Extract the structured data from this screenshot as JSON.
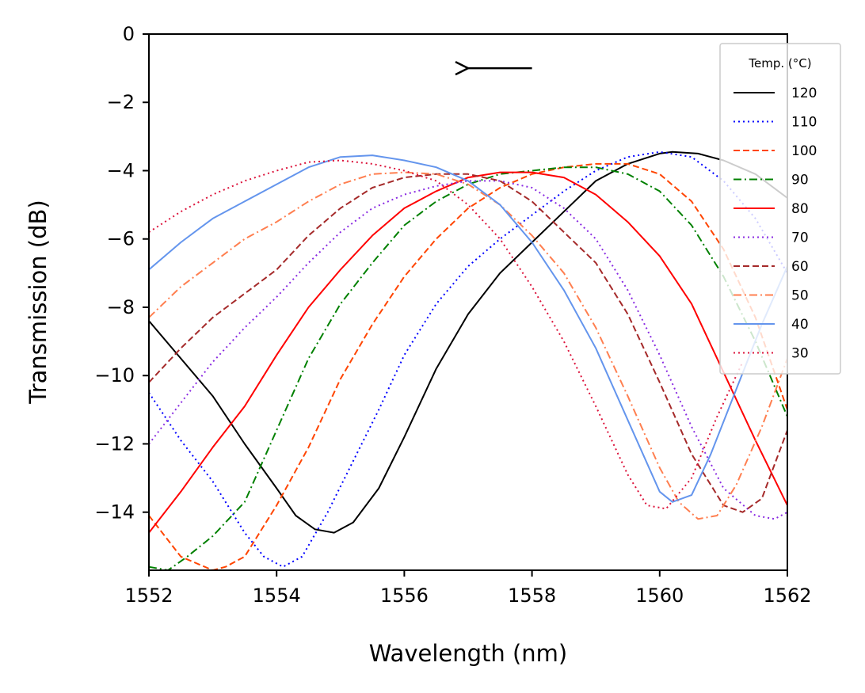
{
  "chart_data": {
    "type": "line",
    "xlabel": "Wavelength (nm)",
    "ylabel": "Transmission (dB)",
    "xlim": [
      1552,
      1562
    ],
    "ylim": [
      -15.7,
      0
    ],
    "xticks": [
      1552,
      1554,
      1556,
      1558,
      1560,
      1562
    ],
    "yticks": [
      0,
      -2,
      -4,
      -6,
      -8,
      -10,
      -12,
      -14
    ],
    "ytick_labels": [
      "0",
      "−2",
      "−4",
      "−6",
      "−8",
      "−10",
      "−12",
      "−14"
    ],
    "grid": false,
    "legend": {
      "title": "Temp. (°C)",
      "position": "top-right"
    },
    "annotation": {
      "type": "arrow",
      "direction": "left",
      "from": [
        1558.0,
        -1.0
      ],
      "to": [
        1557.0,
        -1.0
      ]
    },
    "series": [
      {
        "name": "120",
        "color": "#000000",
        "dash": "solid",
        "x": [
          1552,
          1552.5,
          1553,
          1553.5,
          1554,
          1554.3,
          1554.6,
          1554.9,
          1555.2,
          1555.6,
          1556,
          1556.5,
          1557,
          1557.5,
          1558,
          1558.5,
          1559,
          1559.5,
          1560,
          1560.2,
          1560.6,
          1561,
          1561.5,
          1562
        ],
        "y": [
          -8.4,
          -9.5,
          -10.6,
          -12.0,
          -13.3,
          -14.1,
          -14.5,
          -14.6,
          -14.3,
          -13.3,
          -11.8,
          -9.8,
          -8.2,
          -7.0,
          -6.1,
          -5.2,
          -4.3,
          -3.8,
          -3.5,
          -3.45,
          -3.5,
          -3.7,
          -4.1,
          -4.8
        ]
      },
      {
        "name": "110",
        "color": "#0000ff",
        "dash": "dotted",
        "x": [
          1552,
          1552.5,
          1553,
          1553.5,
          1553.8,
          1554.1,
          1554.4,
          1554.8,
          1555.2,
          1555.6,
          1556,
          1556.5,
          1557,
          1557.5,
          1558,
          1558.5,
          1559,
          1559.5,
          1560,
          1560.5,
          1561,
          1561.5,
          1562
        ],
        "y": [
          -10.5,
          -11.9,
          -13.1,
          -14.6,
          -15.3,
          -15.6,
          -15.3,
          -14.0,
          -12.5,
          -11.0,
          -9.4,
          -7.9,
          -6.8,
          -6.0,
          -5.3,
          -4.6,
          -4.0,
          -3.6,
          -3.45,
          -3.6,
          -4.3,
          -5.4,
          -7.0
        ]
      },
      {
        "name": "100",
        "color": "#ff4500",
        "dash": "dashed",
        "x": [
          1552,
          1552.5,
          1553,
          1553.2,
          1553.5,
          1554,
          1554.5,
          1555,
          1555.5,
          1556,
          1556.5,
          1557,
          1557.5,
          1558,
          1558.5,
          1559,
          1559.5,
          1560,
          1560.5,
          1561,
          1561.5,
          1562
        ],
        "y": [
          -14.1,
          -15.3,
          -15.7,
          -15.6,
          -15.3,
          -13.8,
          -12.1,
          -10.1,
          -8.5,
          -7.1,
          -6.0,
          -5.1,
          -4.5,
          -4.1,
          -3.9,
          -3.8,
          -3.8,
          -4.1,
          -4.9,
          -6.3,
          -8.3,
          -11.0
        ]
      },
      {
        "name": "90",
        "color": "#008000",
        "dash": "dashdot",
        "x": [
          1552,
          1552.3,
          1552.6,
          1553,
          1553.5,
          1554,
          1554.5,
          1555,
          1555.5,
          1556,
          1556.5,
          1557,
          1557.5,
          1558,
          1558.5,
          1559,
          1559.5,
          1560,
          1560.5,
          1561,
          1561.5,
          1562
        ],
        "y": [
          -15.6,
          -15.7,
          -15.3,
          -14.7,
          -13.7,
          -11.6,
          -9.5,
          -7.9,
          -6.7,
          -5.6,
          -4.9,
          -4.4,
          -4.1,
          -4.0,
          -3.9,
          -3.9,
          -4.1,
          -4.6,
          -5.6,
          -7.1,
          -9.0,
          -11.2
        ]
      },
      {
        "name": "80",
        "color": "#ff0000",
        "dash": "solid",
        "x": [
          1552,
          1552.5,
          1553,
          1553.5,
          1554,
          1554.5,
          1555,
          1555.5,
          1556,
          1556.5,
          1557,
          1557.5,
          1558,
          1558.5,
          1559,
          1559.5,
          1560,
          1560.5,
          1561,
          1561.5,
          1562
        ],
        "y": [
          -14.6,
          -13.4,
          -12.1,
          -10.9,
          -9.4,
          -8.0,
          -6.9,
          -5.9,
          -5.1,
          -4.6,
          -4.2,
          -4.05,
          -4.05,
          -4.2,
          -4.7,
          -5.5,
          -6.5,
          -7.9,
          -9.9,
          -11.9,
          -13.8
        ]
      },
      {
        "name": "70",
        "color": "#8a2be2",
        "dash": "dotted",
        "x": [
          1552,
          1552.5,
          1553,
          1553.5,
          1554,
          1554.5,
          1555,
          1555.5,
          1556,
          1556.5,
          1557,
          1557.5,
          1558,
          1558.5,
          1559,
          1559.5,
          1560,
          1560.5,
          1561,
          1561.5,
          1561.8,
          1562
        ],
        "y": [
          -12.0,
          -10.8,
          -9.6,
          -8.6,
          -7.7,
          -6.7,
          -5.8,
          -5.1,
          -4.7,
          -4.45,
          -4.3,
          -4.3,
          -4.5,
          -5.1,
          -6.0,
          -7.5,
          -9.4,
          -11.5,
          -13.3,
          -14.1,
          -14.2,
          -14.0
        ]
      },
      {
        "name": "60",
        "color": "#a52a2a",
        "dash": "dashed",
        "x": [
          1552,
          1552.5,
          1553,
          1553.5,
          1554,
          1554.5,
          1555,
          1555.5,
          1556,
          1556.5,
          1557,
          1557.5,
          1558,
          1558.5,
          1559,
          1559.5,
          1560,
          1560.5,
          1561,
          1561.3,
          1561.6,
          1562
        ],
        "y": [
          -10.2,
          -9.2,
          -8.3,
          -7.6,
          -6.9,
          -5.9,
          -5.1,
          -4.5,
          -4.2,
          -4.1,
          -4.1,
          -4.3,
          -4.9,
          -5.8,
          -6.7,
          -8.2,
          -10.2,
          -12.3,
          -13.8,
          -14.0,
          -13.6,
          -11.6
        ]
      },
      {
        "name": "50",
        "color": "#ff7f50",
        "dash": "dashdot",
        "x": [
          1552,
          1552.5,
          1553,
          1553.5,
          1554,
          1554.5,
          1555,
          1555.5,
          1556,
          1556.5,
          1557,
          1557.5,
          1558,
          1558.5,
          1559,
          1559.5,
          1560,
          1560.3,
          1560.6,
          1560.9,
          1561.2,
          1561.6,
          1562
        ],
        "y": [
          -8.3,
          -7.4,
          -6.7,
          -6.0,
          -5.5,
          -4.9,
          -4.4,
          -4.1,
          -4.05,
          -4.1,
          -4.4,
          -5.0,
          -5.9,
          -7.0,
          -8.6,
          -10.6,
          -12.7,
          -13.7,
          -14.2,
          -14.1,
          -13.2,
          -11.5,
          -9.5
        ]
      },
      {
        "name": "40",
        "color": "#6495ed",
        "dash": "solid",
        "x": [
          1552,
          1552.5,
          1553,
          1553.5,
          1554,
          1554.5,
          1555,
          1555.5,
          1556,
          1556.5,
          1557,
          1557.5,
          1558,
          1558.5,
          1559,
          1559.5,
          1560,
          1560.2,
          1560.5,
          1560.8,
          1561.2,
          1561.6,
          1562
        ],
        "y": [
          -6.9,
          -6.1,
          -5.4,
          -4.9,
          -4.4,
          -3.9,
          -3.6,
          -3.55,
          -3.7,
          -3.9,
          -4.3,
          -5.0,
          -6.1,
          -7.5,
          -9.2,
          -11.3,
          -13.4,
          -13.7,
          -13.5,
          -12.3,
          -10.4,
          -8.5,
          -6.8
        ]
      },
      {
        "name": "30",
        "color": "#dc143c",
        "dash": "dotted",
        "x": [
          1552,
          1552.5,
          1553,
          1553.5,
          1554,
          1554.5,
          1555,
          1555.5,
          1556,
          1556.5,
          1557,
          1557.5,
          1558,
          1558.5,
          1559,
          1559.5,
          1559.8,
          1560.1,
          1560.5,
          1560.9,
          1561.3
        ],
        "y": [
          -5.8,
          -5.2,
          -4.7,
          -4.3,
          -4.0,
          -3.75,
          -3.7,
          -3.8,
          -4.0,
          -4.3,
          -5.0,
          -6.0,
          -7.4,
          -9.0,
          -10.9,
          -12.9,
          -13.8,
          -13.9,
          -13.0,
          -11.2,
          -9.6
        ]
      }
    ]
  }
}
